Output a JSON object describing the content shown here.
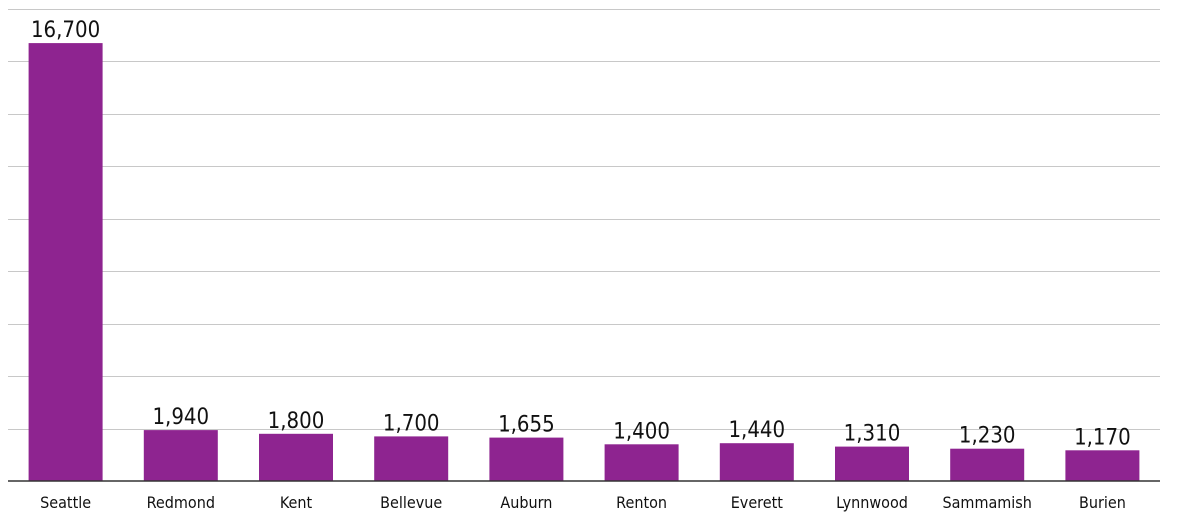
{
  "chart_data": {
    "type": "bar",
    "categories": [
      "Seattle",
      "Redmond",
      "Kent",
      "Bellevue",
      "Auburn",
      "Renton",
      "Everett",
      "Lynnwood",
      "Sammamish",
      "Burien"
    ],
    "values": [
      16700,
      1940,
      1800,
      1700,
      1655,
      1400,
      1440,
      1310,
      1230,
      1170
    ],
    "value_labels": [
      "16,700",
      "1,940",
      "1,800",
      "1,700",
      "1,655",
      "1,400",
      "1,440",
      "1,310",
      "1,230",
      "1,170"
    ],
    "title": "",
    "xlabel": "",
    "ylabel": "",
    "ylim": [
      0,
      18000
    ],
    "grid": true,
    "grid_step": 2000,
    "bar_color": "#8e2490",
    "legend": "none"
  }
}
